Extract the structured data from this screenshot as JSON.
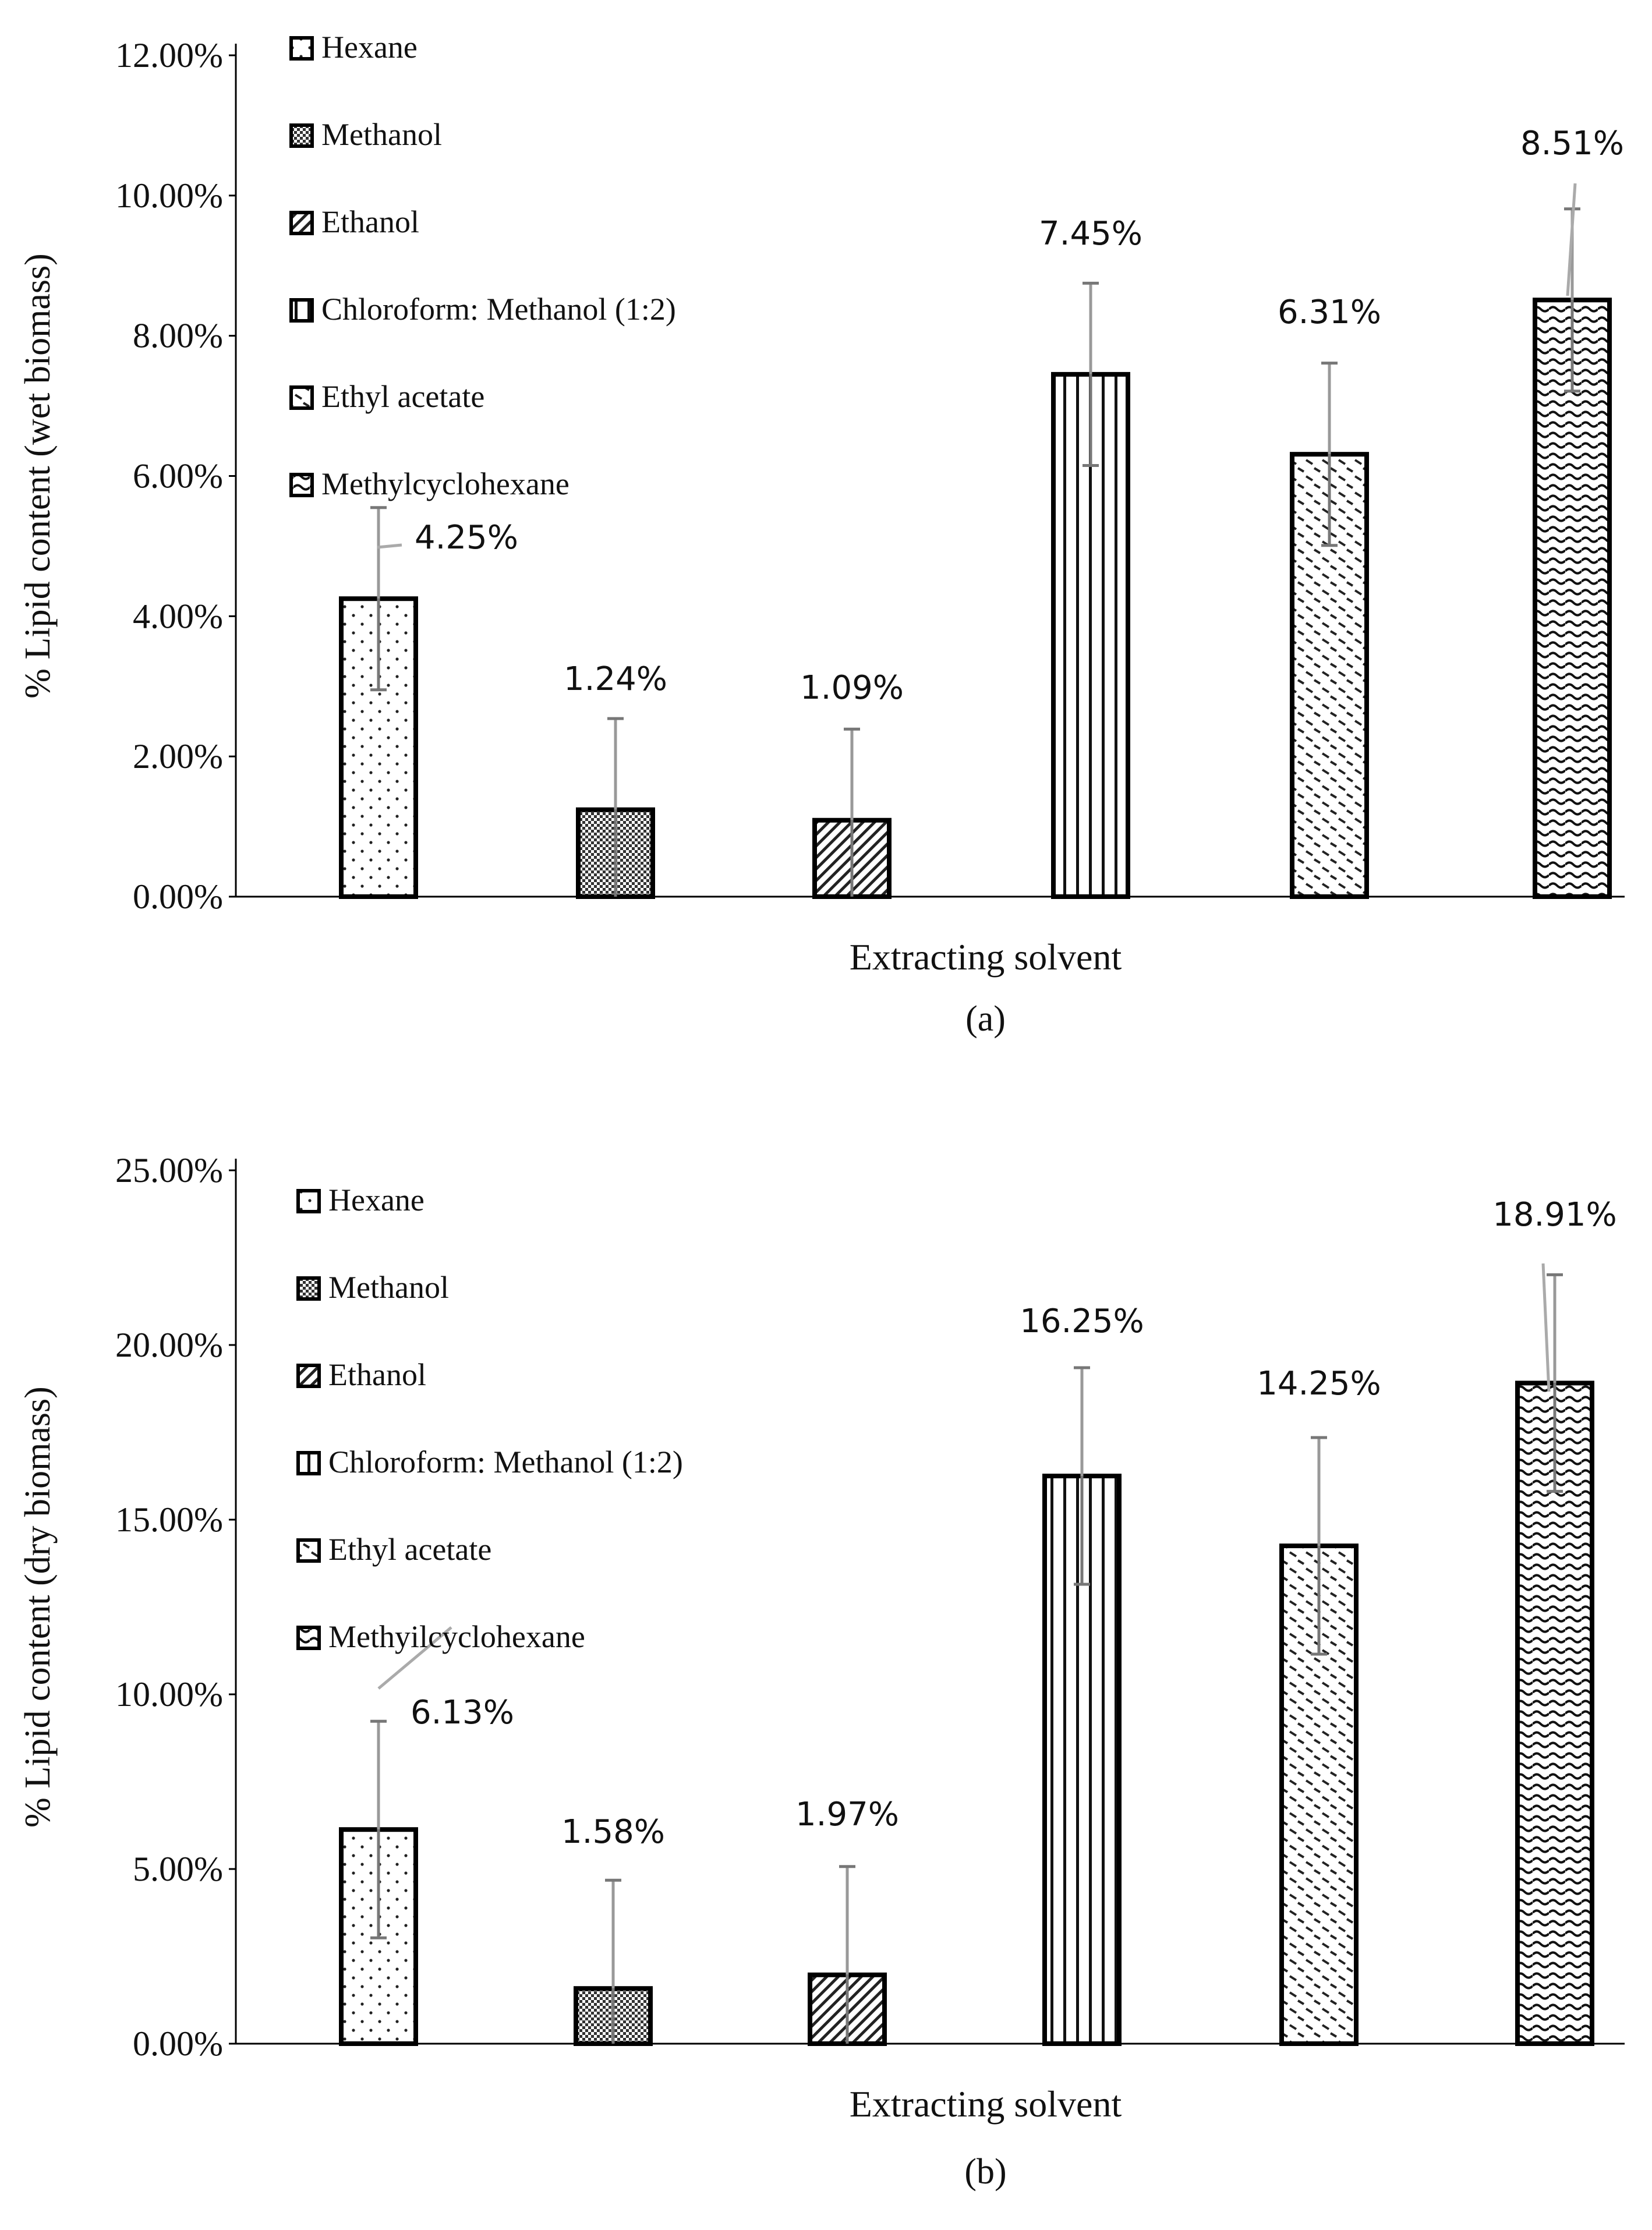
{
  "chart_data": [
    {
      "type": "bar",
      "panel_label": "(a)",
      "xlabel": "Extracting solvent",
      "ylabel": "% Lipid content  (wet biomass)",
      "ylim": [
        0,
        0.12
      ],
      "yticks": [
        0,
        0.02,
        0.04,
        0.06,
        0.08,
        0.1,
        0.12
      ],
      "ytick_labels": [
        "0.00%",
        "2.00%",
        "4.00%",
        "6.00%",
        "8.00%",
        "10.00%",
        "12.00%"
      ],
      "categories": [
        "Hexane",
        "Methanol",
        "Ethanol",
        "Chloroform: Methanol (1:2)",
        "Ethyl acetate",
        "Methylcyclohexane"
      ],
      "legend": [
        "Hexane",
        "Methanol",
        "Ethanol",
        "Chloroform: Methanol (1:2)",
        "Ethyl acetate",
        "Methylcyclohexane"
      ],
      "legend_position": "top-left",
      "values": [
        0.0425,
        0.0124,
        0.0109,
        0.0745,
        0.0631,
        0.0851
      ],
      "data_labels": [
        "4.25%",
        "1.24%",
        "1.09%",
        "7.45%",
        "6.31%",
        "8.51%"
      ],
      "errors": [
        0.013,
        0.013,
        0.013,
        0.013,
        0.013,
        0.013
      ],
      "patterns": [
        "dots",
        "crosshatch",
        "diagonal",
        "vertical",
        "dashes",
        "waves"
      ],
      "grid": false
    },
    {
      "type": "bar",
      "panel_label": "(b)",
      "xlabel": "Extracting solvent",
      "ylabel": "% Lipid content  (dry biomass)",
      "ylim": [
        0,
        0.25
      ],
      "yticks": [
        0,
        0.05,
        0.1,
        0.15,
        0.2,
        0.25
      ],
      "ytick_labels": [
        "0.00%",
        "5.00%",
        "10.00%",
        "15.00%",
        "20.00%",
        "25.00%"
      ],
      "categories": [
        "Hexane",
        "Methanol",
        "Ethanol",
        "Chloroform: Methanol (1:2)",
        "Ethyl acetate",
        "Methyilcyclohexane"
      ],
      "legend": [
        "Hexane",
        "Methanol",
        "Ethanol",
        "Chloroform: Methanol (1:2)",
        "Ethyl acetate",
        "Methyilcyclohexane"
      ],
      "legend_position": "top-left",
      "values": [
        0.0613,
        0.0158,
        0.0197,
        0.1625,
        0.1425,
        0.1891
      ],
      "data_labels": [
        "6.13%",
        "1.58%",
        "1.97%",
        "16.25%",
        "14.25%",
        "18.91%"
      ],
      "errors": [
        0.031,
        0.031,
        0.031,
        0.031,
        0.031,
        0.031
      ],
      "patterns": [
        "dots",
        "crosshatch",
        "diagonal",
        "vertical",
        "dashes",
        "waves"
      ],
      "grid": false
    }
  ]
}
